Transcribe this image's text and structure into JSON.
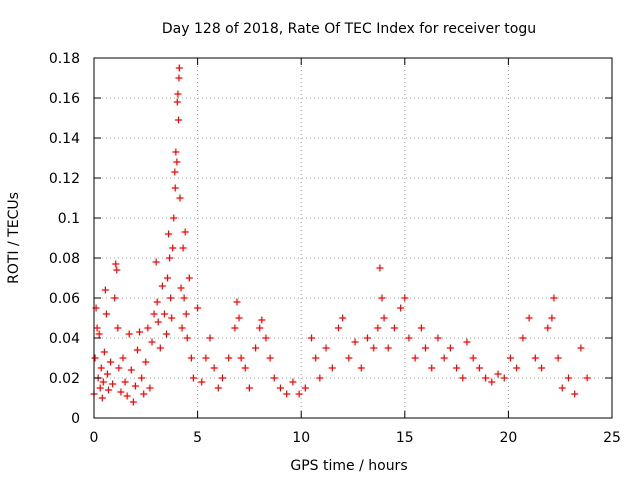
{
  "chart_data": {
    "type": "scatter",
    "title": "Day 128 of 2018, Rate Of TEC Index for receiver togu",
    "xlabel": "GPS time / hours",
    "ylabel": "ROTI / TECUs",
    "xlim": [
      0,
      25
    ],
    "ylim": [
      0,
      0.18
    ],
    "x_ticks": [
      0,
      5,
      10,
      15,
      20,
      25
    ],
    "y_ticks": [
      0,
      0.02,
      0.04,
      0.06,
      0.08,
      0.1,
      0.12,
      0.14,
      0.16,
      0.18
    ],
    "x_tick_labels": [
      "0",
      "5",
      "10",
      "15",
      "20",
      "25"
    ],
    "y_tick_labels": [
      "0",
      "0.02",
      "0.04",
      "0.06",
      "0.08",
      "0.1",
      "0.12",
      "0.14",
      "0.16",
      "0.18"
    ],
    "grid": true,
    "marker": "+",
    "marker_color": "#ff0000",
    "grid_color": "#a0a0a0",
    "series": [
      {
        "name": "ROTI",
        "points": [
          [
            0.0,
            0.012
          ],
          [
            0.05,
            0.03
          ],
          [
            0.1,
            0.055
          ],
          [
            0.15,
            0.045
          ],
          [
            0.2,
            0.02
          ],
          [
            0.25,
            0.042
          ],
          [
            0.3,
            0.015
          ],
          [
            0.35,
            0.025
          ],
          [
            0.4,
            0.01
          ],
          [
            0.45,
            0.018
          ],
          [
            0.5,
            0.033
          ],
          [
            0.55,
            0.064
          ],
          [
            0.6,
            0.052
          ],
          [
            0.65,
            0.022
          ],
          [
            0.7,
            0.014
          ],
          [
            0.8,
            0.028
          ],
          [
            0.9,
            0.017
          ],
          [
            1.0,
            0.06
          ],
          [
            1.05,
            0.077
          ],
          [
            1.1,
            0.074
          ],
          [
            1.15,
            0.045
          ],
          [
            1.2,
            0.025
          ],
          [
            1.3,
            0.013
          ],
          [
            1.4,
            0.03
          ],
          [
            1.5,
            0.018
          ],
          [
            1.6,
            0.011
          ],
          [
            1.7,
            0.042
          ],
          [
            1.8,
            0.024
          ],
          [
            1.9,
            0.008
          ],
          [
            2.0,
            0.016
          ],
          [
            2.1,
            0.034
          ],
          [
            2.2,
            0.043
          ],
          [
            2.3,
            0.02
          ],
          [
            2.4,
            0.012
          ],
          [
            2.5,
            0.028
          ],
          [
            2.6,
            0.045
          ],
          [
            2.7,
            0.015
          ],
          [
            2.8,
            0.038
          ],
          [
            2.9,
            0.052
          ],
          [
            3.0,
            0.078
          ],
          [
            3.05,
            0.058
          ],
          [
            3.1,
            0.048
          ],
          [
            3.2,
            0.035
          ],
          [
            3.3,
            0.066
          ],
          [
            3.4,
            0.052
          ],
          [
            3.5,
            0.042
          ],
          [
            3.55,
            0.07
          ],
          [
            3.6,
            0.092
          ],
          [
            3.65,
            0.08
          ],
          [
            3.7,
            0.06
          ],
          [
            3.75,
            0.05
          ],
          [
            3.8,
            0.085
          ],
          [
            3.85,
            0.1
          ],
          [
            3.9,
            0.123
          ],
          [
            3.92,
            0.115
          ],
          [
            3.95,
            0.133
          ],
          [
            4.0,
            0.128
          ],
          [
            4.02,
            0.158
          ],
          [
            4.05,
            0.162
          ],
          [
            4.08,
            0.149
          ],
          [
            4.1,
            0.17
          ],
          [
            4.12,
            0.175
          ],
          [
            4.15,
            0.11
          ],
          [
            4.2,
            0.065
          ],
          [
            4.25,
            0.045
          ],
          [
            4.3,
            0.085
          ],
          [
            4.35,
            0.06
          ],
          [
            4.4,
            0.093
          ],
          [
            4.45,
            0.052
          ],
          [
            4.5,
            0.04
          ],
          [
            4.6,
            0.07
          ],
          [
            4.7,
            0.03
          ],
          [
            4.8,
            0.02
          ],
          [
            5.0,
            0.055
          ],
          [
            5.2,
            0.018
          ],
          [
            5.4,
            0.03
          ],
          [
            5.6,
            0.04
          ],
          [
            5.8,
            0.025
          ],
          [
            6.0,
            0.015
          ],
          [
            6.2,
            0.02
          ],
          [
            6.5,
            0.03
          ],
          [
            6.8,
            0.045
          ],
          [
            6.9,
            0.058
          ],
          [
            7.0,
            0.05
          ],
          [
            7.1,
            0.03
          ],
          [
            7.3,
            0.025
          ],
          [
            7.5,
            0.015
          ],
          [
            7.8,
            0.035
          ],
          [
            8.0,
            0.045
          ],
          [
            8.1,
            0.049
          ],
          [
            8.3,
            0.04
          ],
          [
            8.5,
            0.03
          ],
          [
            8.7,
            0.02
          ],
          [
            9.0,
            0.015
          ],
          [
            9.3,
            0.012
          ],
          [
            9.6,
            0.018
          ],
          [
            9.9,
            0.012
          ],
          [
            10.2,
            0.015
          ],
          [
            10.5,
            0.04
          ],
          [
            10.7,
            0.03
          ],
          [
            10.9,
            0.02
          ],
          [
            11.2,
            0.035
          ],
          [
            11.5,
            0.025
          ],
          [
            11.8,
            0.045
          ],
          [
            12.0,
            0.05
          ],
          [
            12.3,
            0.03
          ],
          [
            12.6,
            0.038
          ],
          [
            12.9,
            0.025
          ],
          [
            13.2,
            0.04
          ],
          [
            13.5,
            0.035
          ],
          [
            13.7,
            0.045
          ],
          [
            13.8,
            0.075
          ],
          [
            13.9,
            0.06
          ],
          [
            14.0,
            0.05
          ],
          [
            14.2,
            0.035
          ],
          [
            14.5,
            0.045
          ],
          [
            14.8,
            0.055
          ],
          [
            15.0,
            0.06
          ],
          [
            15.2,
            0.04
          ],
          [
            15.5,
            0.03
          ],
          [
            15.8,
            0.045
          ],
          [
            16.0,
            0.035
          ],
          [
            16.3,
            0.025
          ],
          [
            16.6,
            0.04
          ],
          [
            16.9,
            0.03
          ],
          [
            17.2,
            0.035
          ],
          [
            17.5,
            0.025
          ],
          [
            17.8,
            0.02
          ],
          [
            18.0,
            0.038
          ],
          [
            18.3,
            0.03
          ],
          [
            18.6,
            0.025
          ],
          [
            18.9,
            0.02
          ],
          [
            19.2,
            0.018
          ],
          [
            19.5,
            0.022
          ],
          [
            19.8,
            0.02
          ],
          [
            20.1,
            0.03
          ],
          [
            20.4,
            0.025
          ],
          [
            20.7,
            0.04
          ],
          [
            21.0,
            0.05
          ],
          [
            21.3,
            0.03
          ],
          [
            21.6,
            0.025
          ],
          [
            21.9,
            0.045
          ],
          [
            22.1,
            0.05
          ],
          [
            22.2,
            0.06
          ],
          [
            22.4,
            0.03
          ],
          [
            22.6,
            0.015
          ],
          [
            22.9,
            0.02
          ],
          [
            23.2,
            0.012
          ],
          [
            23.5,
            0.035
          ],
          [
            23.8,
            0.02
          ]
        ]
      }
    ]
  }
}
